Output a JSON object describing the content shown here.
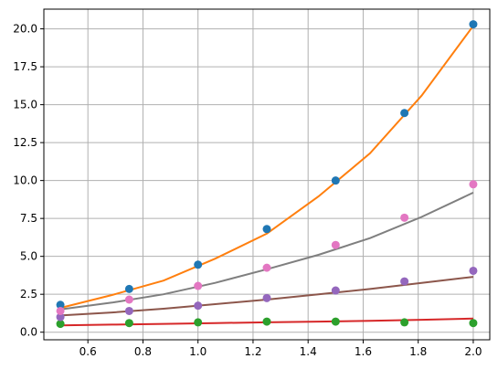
{
  "chart_data": {
    "type": "scatter",
    "title": "",
    "xlabel": "",
    "ylabel": "",
    "xlim": [
      0.44,
      2.06
    ],
    "ylim": [
      -0.5,
      21.3
    ],
    "grid": true,
    "xticks": [
      0.6,
      0.8,
      1.0,
      1.2,
      1.4,
      1.6,
      1.8,
      2.0
    ],
    "xtick_labels": [
      "0.6",
      "0.8",
      "1.0",
      "1.2",
      "1.4",
      "1.6",
      "1.8",
      "2.0"
    ],
    "yticks": [
      0.0,
      2.5,
      5.0,
      7.5,
      10.0,
      12.5,
      15.0,
      17.5,
      20.0
    ],
    "ytick_labels": [
      "0.0",
      "2.5",
      "5.0",
      "7.5",
      "10.0",
      "12.5",
      "15.0",
      "17.5",
      "20.0"
    ],
    "scatter_series": [
      {
        "color": "#1f77b4",
        "x": [
          0.5,
          0.75,
          1.0,
          1.25,
          1.5,
          1.75,
          2.0
        ],
        "y": [
          1.8,
          2.85,
          4.45,
          6.8,
          10.0,
          14.45,
          20.3
        ]
      },
      {
        "color": "#2ca02c",
        "x": [
          0.5,
          0.75,
          1.0,
          1.25,
          1.5,
          1.75,
          2.0
        ],
        "y": [
          0.55,
          0.6,
          0.65,
          0.7,
          0.7,
          0.65,
          0.6
        ]
      },
      {
        "color": "#9467bd",
        "x": [
          0.5,
          0.75,
          1.0,
          1.25,
          1.5,
          1.75,
          2.0
        ],
        "y": [
          1.0,
          1.4,
          1.75,
          2.25,
          2.75,
          3.35,
          4.05
        ]
      },
      {
        "color": "#e377c2",
        "x": [
          0.5,
          0.75,
          1.0,
          1.25,
          1.5,
          1.75,
          2.0
        ],
        "y": [
          1.4,
          2.15,
          3.05,
          4.25,
          5.75,
          7.55,
          9.75
        ]
      }
    ],
    "line_series": [
      {
        "color": "#ff7f0e",
        "x": [
          0.5,
          0.6875,
          0.875,
          1.0625,
          1.25,
          1.4375,
          1.625,
          1.8125,
          2.0
        ],
        "y": [
          1.6,
          2.45,
          3.4,
          4.85,
          6.5,
          8.95,
          11.8,
          15.6,
          20.2
        ]
      },
      {
        "color": "#7f7f7f",
        "x": [
          0.5,
          0.6875,
          0.875,
          1.0625,
          1.25,
          1.4375,
          1.625,
          1.8125,
          2.0
        ],
        "y": [
          1.5,
          1.95,
          2.5,
          3.25,
          4.15,
          5.1,
          6.2,
          7.6,
          9.2
        ]
      },
      {
        "color": "#8c564b",
        "x": [
          0.5,
          0.6875,
          0.875,
          1.0625,
          1.25,
          1.4375,
          1.625,
          1.8125,
          2.0
        ],
        "y": [
          1.1,
          1.3,
          1.55,
          1.85,
          2.15,
          2.5,
          2.85,
          3.25,
          3.65
        ]
      },
      {
        "color": "#d62728",
        "x": [
          0.5,
          0.6875,
          0.875,
          1.0625,
          1.25,
          1.4375,
          1.625,
          1.8125,
          2.0
        ],
        "y": [
          0.45,
          0.5,
          0.55,
          0.6,
          0.65,
          0.7,
          0.75,
          0.82,
          0.9
        ]
      }
    ]
  }
}
